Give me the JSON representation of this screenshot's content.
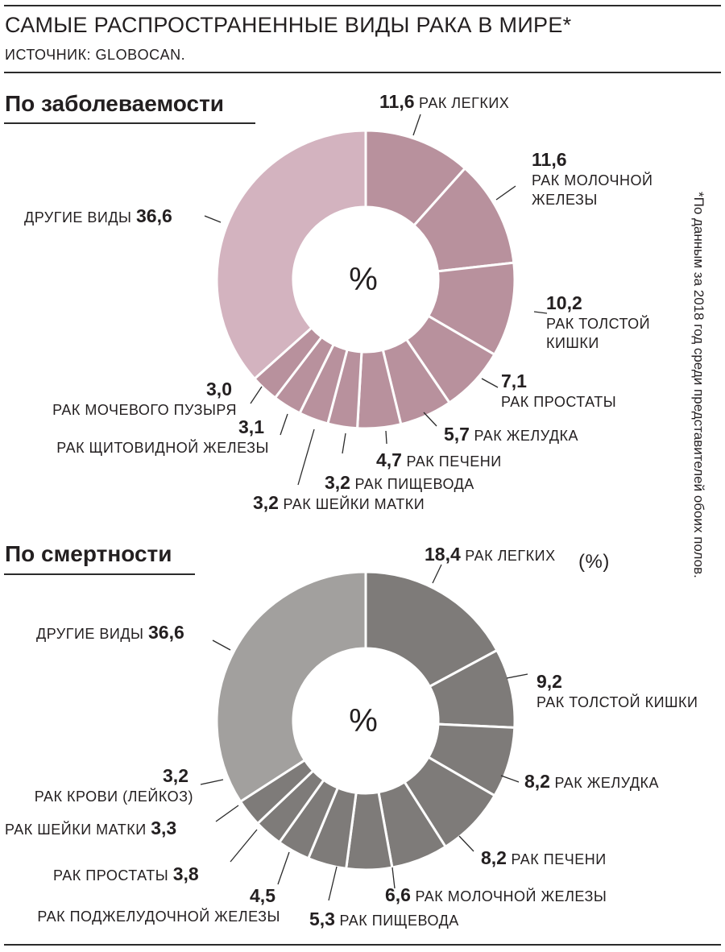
{
  "header": {
    "title": "САМЫЕ РАСПРОСТРАНЕННЫЕ ВИДЫ РАКА В МИРЕ*",
    "source": "ИСТОЧНИК: GLOBOCAN."
  },
  "footnote": "*По данным за 2018 год среди представителей обоих полов.",
  "colors": {
    "incidence_slice": "#b8919d",
    "incidence_other": "#d3b3bf",
    "mortality_slice": "#7e7b79",
    "mortality_other": "#a2a09e",
    "separator": "#ffffff",
    "text": "#231f20"
  },
  "chart_data": [
    {
      "type": "pie",
      "title": "По заболеваемости",
      "center_label": "%",
      "unit": "%",
      "slices": [
        {
          "value": 11.6,
          "value_text": "11,6",
          "label": "РАК ЛЕГКИХ"
        },
        {
          "value": 11.6,
          "value_text": "11,6",
          "label": "РАК МОЛОЧНОЙ ЖЕЛЕЗЫ",
          "label_lines": [
            "РАК МОЛОЧНОЙ",
            "ЖЕЛЕЗЫ"
          ]
        },
        {
          "value": 10.2,
          "value_text": "10,2",
          "label": "РАК ТОЛСТОЙ КИШКИ",
          "label_lines": [
            "РАК ТОЛСТОЙ",
            "КИШКИ"
          ]
        },
        {
          "value": 7.1,
          "value_text": "7,1",
          "label": "РАК ПРОСТАТЫ"
        },
        {
          "value": 5.7,
          "value_text": "5,7",
          "label": "РАК ЖЕЛУДКА"
        },
        {
          "value": 4.7,
          "value_text": "4,7",
          "label": "РАК ПЕЧЕНИ"
        },
        {
          "value": 3.2,
          "value_text": "3,2",
          "label": "РАК ПИЩЕВОДА"
        },
        {
          "value": 3.2,
          "value_text": "3,2",
          "label": "РАК ШЕЙКИ МАТКИ"
        },
        {
          "value": 3.1,
          "value_text": "3,1",
          "label": "РАК ЩИТОВИДНОЙ ЖЕЛЕЗЫ"
        },
        {
          "value": 3.0,
          "value_text": "3,0",
          "label": "РАК МОЧЕВОГО ПУЗЫРЯ"
        },
        {
          "value": 36.6,
          "value_text": "36,6",
          "label": "ДРУГИЕ ВИДЫ",
          "other": true
        }
      ]
    },
    {
      "type": "pie",
      "title": "По смертности",
      "center_label": "%",
      "unit": "%",
      "unit_note": "(%)",
      "slices": [
        {
          "value": 18.4,
          "value_text": "18,4",
          "label": "РАК ЛЕГКИХ"
        },
        {
          "value": 9.2,
          "value_text": "9,2",
          "label": "РАК ТОЛСТОЙ КИШКИ"
        },
        {
          "value": 8.2,
          "value_text": "8,2",
          "label": "РАК ЖЕЛУДКА"
        },
        {
          "value": 8.2,
          "value_text": "8,2",
          "label": "РАК ПЕЧЕНИ"
        },
        {
          "value": 6.6,
          "value_text": "6,6",
          "label": "РАК МОЛОЧНОЙ ЖЕЛЕЗЫ"
        },
        {
          "value": 5.3,
          "value_text": "5,3",
          "label": "РАК ПИЩЕВОДА"
        },
        {
          "value": 4.5,
          "value_text": "4,5",
          "label": "РАК ПОДЖЕЛУДОЧНОЙ ЖЕЛЕЗЫ"
        },
        {
          "value": 3.8,
          "value_text": "3,8",
          "label": "РАК ПРОСТАТЫ"
        },
        {
          "value": 3.3,
          "value_text": "3,3",
          "label": "РАК ШЕЙКИ МАТКИ"
        },
        {
          "value": 3.2,
          "value_text": "3,2",
          "label": "РАК КРОВИ (ЛЕЙКОЗ)"
        },
        {
          "value": 36.6,
          "value_text": "36,6",
          "label": "ДРУГИЕ ВИДЫ",
          "other": true
        }
      ]
    }
  ]
}
